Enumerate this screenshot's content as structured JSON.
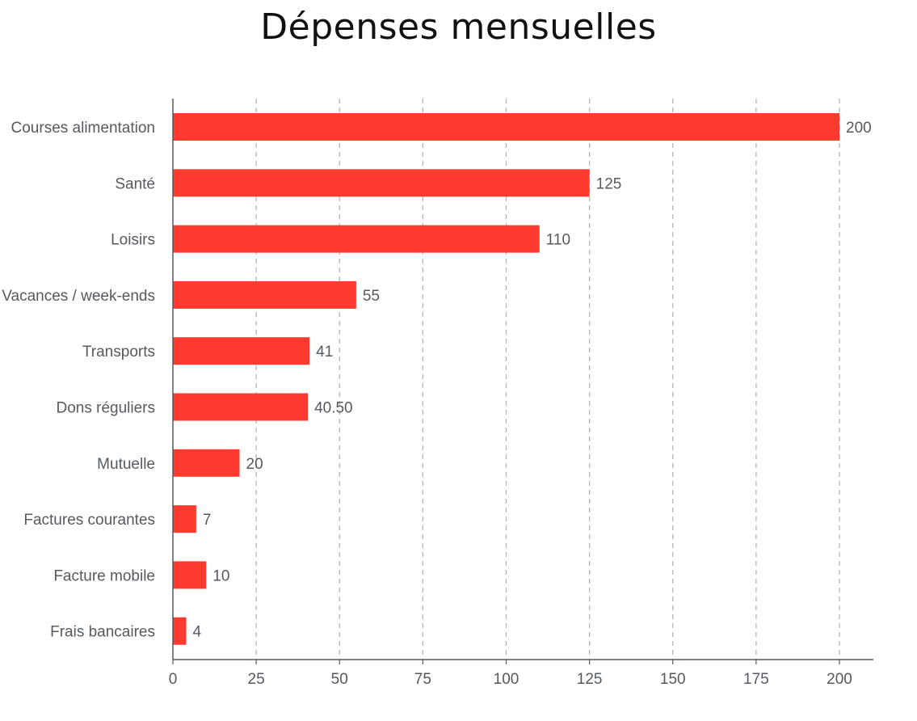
{
  "chart_data": {
    "type": "bar",
    "orientation": "horizontal",
    "title": "Dépenses mensuelles",
    "xlabel": "",
    "ylabel": "",
    "categories": [
      "Courses alimentation",
      "Santé",
      "Loisirs",
      "Vacances / week-ends",
      "Transports",
      "Dons réguliers",
      "Mutuelle",
      "Factures courantes",
      "Facture mobile",
      "Frais bancaires"
    ],
    "values": [
      200,
      125,
      110,
      55,
      41,
      40.5,
      20,
      7,
      10,
      4
    ],
    "value_labels": [
      "200",
      "125",
      "110",
      "55",
      "41",
      "40.50",
      "20",
      "7",
      "10",
      "4"
    ],
    "xlim": [
      0,
      200
    ],
    "xticks": [
      "0",
      "25",
      "50",
      "75",
      "100",
      "125",
      "150",
      "175",
      "200"
    ],
    "grid": "vertical dashed",
    "legend": "none",
    "bar_color": "#ff3b30"
  }
}
